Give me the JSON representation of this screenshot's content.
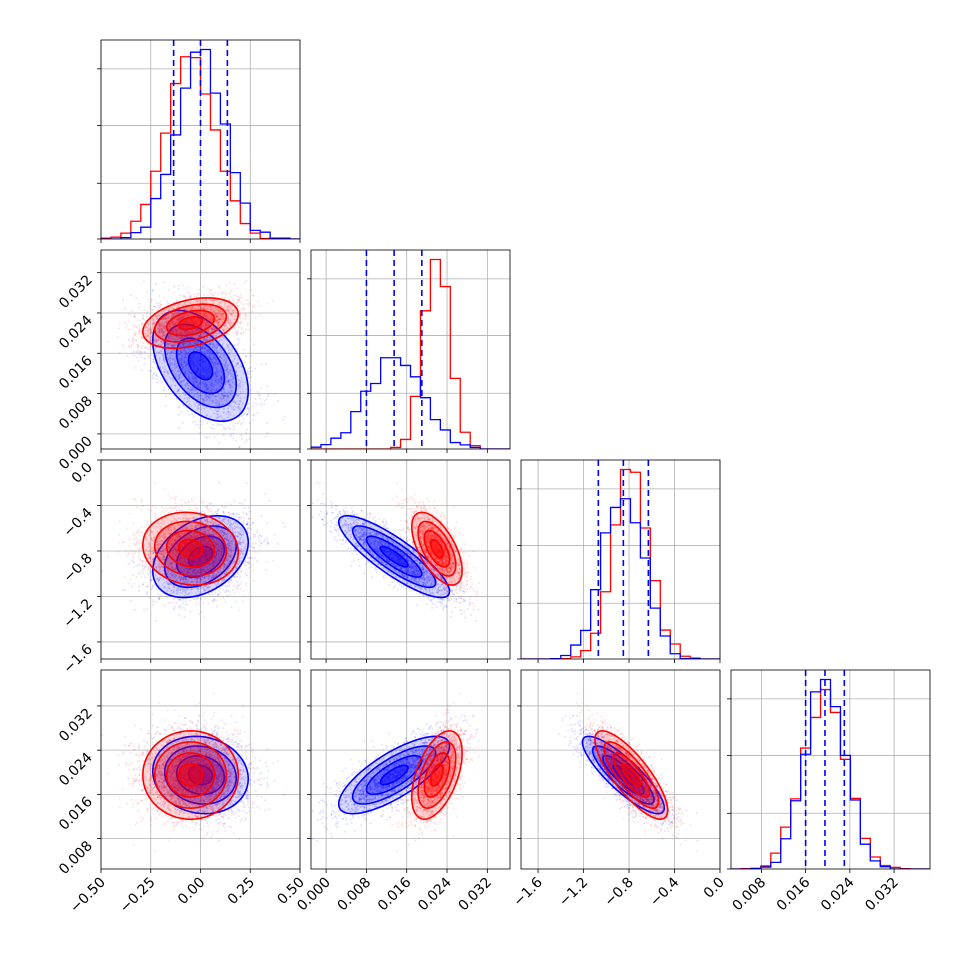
{
  "colors": {
    "blue": "#0000ff",
    "red": "#ff0000",
    "grid": "#b0b0b0",
    "frame": "#000000",
    "background": "#ffffff"
  },
  "chart_data": {
    "type": "corner",
    "grid": true,
    "params": [
      {
        "ticks": [
          -0.5,
          -0.25,
          0.0,
          0.25,
          0.5
        ],
        "tick_labels": [
          "−0.50",
          "−0.25",
          "0.00",
          "0.25",
          "0.50"
        ],
        "range": [
          -0.5,
          0.5
        ]
      },
      {
        "ticks": [
          0.0,
          0.008,
          0.016,
          0.024,
          0.032
        ],
        "tick_labels": [
          "0.000",
          "0.008",
          "0.016",
          "0.024",
          "0.032"
        ],
        "range": [
          -0.003,
          0.0365
        ]
      },
      {
        "ticks": [
          -1.6,
          -1.2,
          -0.8,
          -0.4,
          0.0
        ],
        "tick_labels": [
          "−1.6",
          "−1.2",
          "−0.8",
          "−0.4",
          "0.0"
        ],
        "range": [
          -1.75,
          0.0
        ]
      },
      {
        "ticks": [
          0.008,
          0.016,
          0.024,
          0.032
        ],
        "tick_labels": [
          "0.008",
          "0.016",
          "0.024",
          "0.032"
        ],
        "range": [
          0.0025,
          0.0385
        ]
      }
    ],
    "series": [
      {
        "name": "",
        "color": "#0000ff",
        "mean": [
          0.0,
          0.0135,
          -0.85,
          0.0195
        ],
        "std": [
          0.12,
          0.0055,
          0.18,
          0.0035
        ],
        "correlation": [
          [
            1.0,
            -0.45,
            0.35,
            -0.1
          ],
          [
            -0.45,
            1.0,
            -0.85,
            0.75
          ],
          [
            0.35,
            -0.85,
            1.0,
            -0.85
          ],
          [
            -0.1,
            0.75,
            -0.85,
            1.0
          ]
        ],
        "quantiles": [
          [
            -0.135,
            0.0,
            0.135
          ],
          [
            0.008,
            0.0135,
            0.019
          ],
          [
            -1.07,
            -0.85,
            -0.63
          ],
          [
            0.016,
            0.0195,
            0.023
          ]
        ]
      },
      {
        "name": "",
        "color": "#ff0000",
        "mean": [
          -0.05,
          0.022,
          -0.78,
          0.0195
        ],
        "std": [
          0.12,
          0.0025,
          0.16,
          0.004
        ],
        "correlation": [
          [
            1.0,
            0.35,
            -0.1,
            0.0
          ],
          [
            0.35,
            1.0,
            -0.6,
            0.5
          ],
          [
            -0.1,
            -0.6,
            1.0,
            -0.8
          ],
          [
            0.0,
            0.5,
            -0.8,
            1.0
          ]
        ],
        "quantiles": null
      }
    ]
  }
}
